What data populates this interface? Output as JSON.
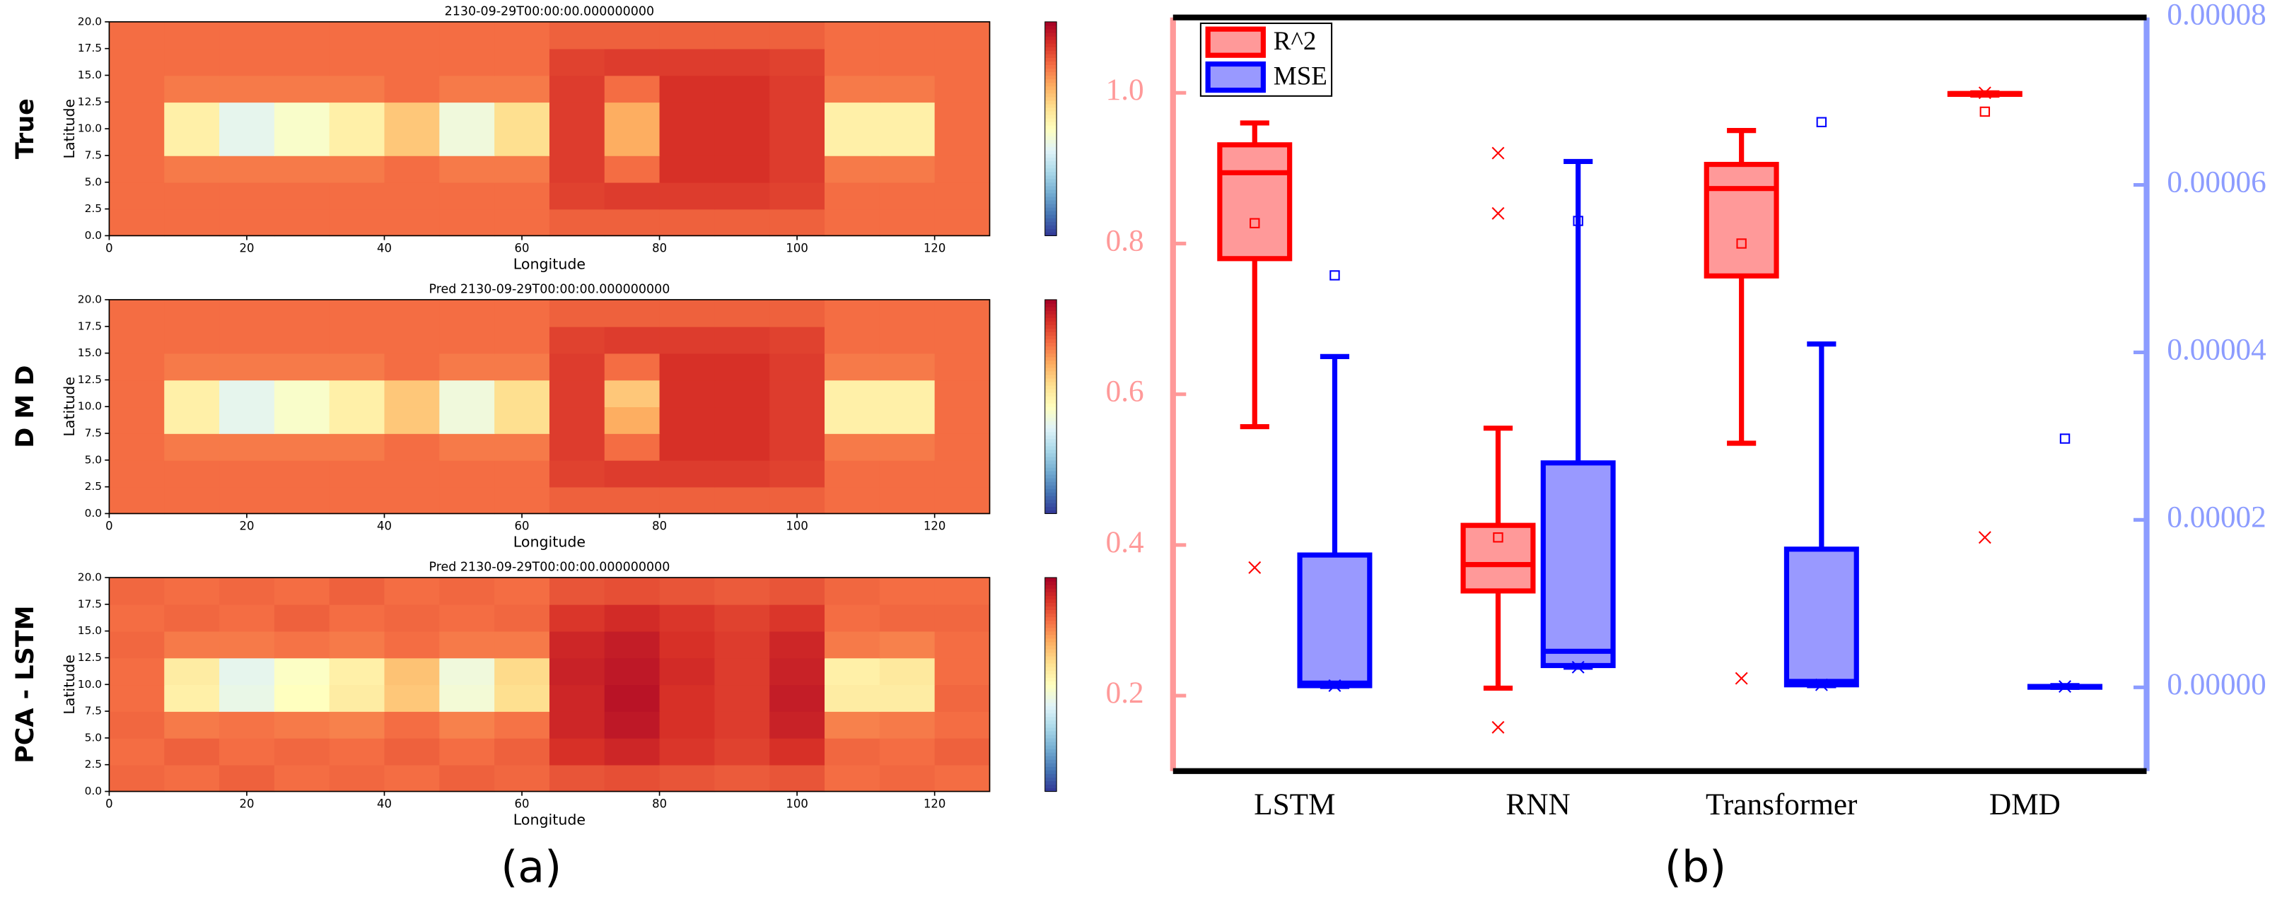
{
  "panel_labels": [
    "(a)",
    "(b)"
  ],
  "chart_data": [
    {
      "type": "heatmap",
      "title": "2130-09-29T00:00:00.000000000",
      "row_label": "True",
      "xlabel": "Longitude",
      "ylabel": "Latitude",
      "xlim": [
        0,
        128
      ],
      "ylim": [
        0,
        20
      ],
      "zlim": [
        0,
        1
      ],
      "xticks": [
        0,
        20,
        40,
        60,
        80,
        100,
        120
      ],
      "yticks": [
        {
          "value": 0,
          "label": "0.0"
        },
        2.5,
        {
          "value": 5,
          "label": "5.0"
        },
        7.5,
        {
          "value": 10,
          "label": "10.0"
        },
        12.5,
        {
          "value": 15,
          "label": "15.0"
        },
        17.5,
        {
          "value": 20,
          "label": "20.0"
        }
      ],
      "z": [
        [
          0.8,
          0.8,
          0.8,
          0.8,
          0.8,
          0.8,
          0.8,
          0.8,
          0.82,
          0.82,
          0.82,
          0.82,
          0.82,
          0.8,
          0.8,
          0.8
        ],
        [
          0.8,
          0.8,
          0.8,
          0.8,
          0.8,
          0.8,
          0.8,
          0.8,
          0.87,
          0.88,
          0.88,
          0.88,
          0.87,
          0.8,
          0.8,
          0.8
        ],
        [
          0.8,
          0.78,
          0.78,
          0.78,
          0.78,
          0.8,
          0.78,
          0.78,
          0.88,
          0.8,
          0.9,
          0.9,
          0.88,
          0.78,
          0.78,
          0.8
        ],
        [
          0.8,
          0.55,
          0.42,
          0.48,
          0.55,
          0.65,
          0.45,
          0.6,
          0.88,
          0.7,
          0.9,
          0.9,
          0.88,
          0.55,
          0.55,
          0.8
        ],
        [
          0.8,
          0.55,
          0.42,
          0.48,
          0.55,
          0.65,
          0.45,
          0.6,
          0.88,
          0.7,
          0.9,
          0.9,
          0.88,
          0.55,
          0.55,
          0.8
        ],
        [
          0.8,
          0.78,
          0.78,
          0.78,
          0.78,
          0.8,
          0.78,
          0.78,
          0.88,
          0.8,
          0.9,
          0.9,
          0.88,
          0.78,
          0.78,
          0.8
        ],
        [
          0.8,
          0.8,
          0.8,
          0.8,
          0.8,
          0.8,
          0.8,
          0.8,
          0.87,
          0.88,
          0.88,
          0.88,
          0.87,
          0.8,
          0.8,
          0.8
        ],
        [
          0.8,
          0.8,
          0.8,
          0.8,
          0.8,
          0.8,
          0.8,
          0.8,
          0.82,
          0.82,
          0.82,
          0.82,
          0.82,
          0.8,
          0.8,
          0.8
        ]
      ]
    },
    {
      "type": "heatmap",
      "title": "Pred 2130-09-29T00:00:00.000000000",
      "row_label": "D M D",
      "xlabel": "Longitude",
      "ylabel": "Latitude",
      "xlim": [
        0,
        128
      ],
      "ylim": [
        0,
        20
      ],
      "zlim": [
        0,
        1
      ],
      "xticks": [
        0,
        20,
        40,
        60,
        80,
        100,
        120
      ],
      "yticks": [
        {
          "value": 0,
          "label": "0.0"
        },
        2.5,
        {
          "value": 5,
          "label": "5.0"
        },
        7.5,
        {
          "value": 10,
          "label": "10.0"
        },
        12.5,
        {
          "value": 15,
          "label": "15.0"
        },
        17.5,
        {
          "value": 20,
          "label": "20.0"
        }
      ],
      "z": [
        [
          0.8,
          0.8,
          0.8,
          0.8,
          0.8,
          0.8,
          0.8,
          0.8,
          0.82,
          0.82,
          0.82,
          0.82,
          0.82,
          0.8,
          0.8,
          0.8
        ],
        [
          0.8,
          0.8,
          0.8,
          0.8,
          0.8,
          0.8,
          0.8,
          0.8,
          0.87,
          0.88,
          0.88,
          0.88,
          0.87,
          0.8,
          0.8,
          0.8
        ],
        [
          0.8,
          0.78,
          0.78,
          0.78,
          0.78,
          0.8,
          0.78,
          0.78,
          0.88,
          0.8,
          0.9,
          0.9,
          0.88,
          0.78,
          0.78,
          0.8
        ],
        [
          0.8,
          0.55,
          0.42,
          0.48,
          0.55,
          0.65,
          0.45,
          0.6,
          0.88,
          0.7,
          0.9,
          0.9,
          0.88,
          0.55,
          0.55,
          0.8
        ],
        [
          0.8,
          0.55,
          0.42,
          0.48,
          0.55,
          0.65,
          0.45,
          0.6,
          0.88,
          0.65,
          0.9,
          0.9,
          0.88,
          0.55,
          0.55,
          0.8
        ],
        [
          0.8,
          0.78,
          0.78,
          0.78,
          0.78,
          0.8,
          0.78,
          0.78,
          0.88,
          0.8,
          0.9,
          0.9,
          0.88,
          0.78,
          0.78,
          0.8
        ],
        [
          0.8,
          0.8,
          0.8,
          0.8,
          0.8,
          0.8,
          0.8,
          0.8,
          0.87,
          0.88,
          0.88,
          0.88,
          0.87,
          0.8,
          0.8,
          0.8
        ],
        [
          0.8,
          0.8,
          0.8,
          0.8,
          0.8,
          0.8,
          0.8,
          0.8,
          0.82,
          0.82,
          0.82,
          0.82,
          0.82,
          0.8,
          0.8,
          0.8
        ]
      ]
    },
    {
      "type": "heatmap",
      "title": "Pred 2130-09-29T00:00:00.000000000",
      "row_label": "PCA - LSTM",
      "xlabel": "Longitude",
      "ylabel": "Latitude",
      "xlim": [
        0,
        128
      ],
      "ylim": [
        0,
        20
      ],
      "zlim": [
        0,
        1
      ],
      "xticks": [
        0,
        20,
        40,
        60,
        80,
        100,
        120
      ],
      "yticks": [
        {
          "value": 0,
          "label": "0.0"
        },
        2.5,
        {
          "value": 5,
          "label": "5.0"
        },
        7.5,
        {
          "value": 10,
          "label": "10.0"
        },
        12.5,
        {
          "value": 15,
          "label": "15.0"
        },
        17.5,
        {
          "value": 20,
          "label": "20.0"
        }
      ],
      "z": [
        [
          0.81,
          0.8,
          0.82,
          0.8,
          0.81,
          0.8,
          0.82,
          0.81,
          0.84,
          0.85,
          0.84,
          0.83,
          0.84,
          0.8,
          0.81,
          0.8
        ],
        [
          0.8,
          0.82,
          0.8,
          0.81,
          0.8,
          0.82,
          0.8,
          0.82,
          0.9,
          0.92,
          0.89,
          0.87,
          0.9,
          0.81,
          0.8,
          0.82
        ],
        [
          0.81,
          0.78,
          0.79,
          0.78,
          0.77,
          0.8,
          0.77,
          0.79,
          0.92,
          0.95,
          0.9,
          0.88,
          0.93,
          0.77,
          0.78,
          0.8
        ],
        [
          0.8,
          0.55,
          0.43,
          0.5,
          0.56,
          0.65,
          0.46,
          0.6,
          0.92,
          0.96,
          0.9,
          0.88,
          0.94,
          0.56,
          0.56,
          0.81
        ],
        [
          0.8,
          0.56,
          0.42,
          0.49,
          0.55,
          0.66,
          0.45,
          0.61,
          0.93,
          0.95,
          0.91,
          0.88,
          0.93,
          0.55,
          0.57,
          0.8
        ],
        [
          0.81,
          0.78,
          0.78,
          0.79,
          0.78,
          0.8,
          0.78,
          0.78,
          0.92,
          0.94,
          0.9,
          0.88,
          0.92,
          0.78,
          0.77,
          0.8
        ],
        [
          0.8,
          0.81,
          0.8,
          0.82,
          0.8,
          0.81,
          0.8,
          0.81,
          0.89,
          0.91,
          0.89,
          0.87,
          0.89,
          0.8,
          0.81,
          0.81
        ],
        [
          0.81,
          0.8,
          0.81,
          0.8,
          0.82,
          0.8,
          0.81,
          0.8,
          0.84,
          0.85,
          0.84,
          0.83,
          0.84,
          0.81,
          0.8,
          0.8
        ]
      ]
    },
    {
      "type": "box",
      "categories": [
        "LSTM",
        "RNN",
        "Transformer",
        "DMD"
      ],
      "legend": "upper left",
      "ylim": [
        0.1,
        1.1
      ],
      "yticks": [
        0.2,
        0.4,
        0.6,
        0.8,
        {
          "value": 1,
          "label": "1.0"
        }
      ],
      "y2lim": [
        -1e-05,
        8e-05
      ],
      "y2ticks": [
        {
          "value": 0,
          "label": "0.00000"
        },
        {
          "value": 2e-05,
          "label": "0.00002"
        },
        {
          "value": 4e-05,
          "label": "0.00004"
        },
        {
          "value": 6e-05,
          "label": "0.00006"
        },
        {
          "value": 8e-05,
          "label": "0.00008"
        }
      ],
      "series": [
        {
          "name": "R^2",
          "color": "#ff0000",
          "fill": "#ff9999",
          "axis": "y",
          "stats": [
            {
              "whislo": 0.557,
              "q1": 0.78,
              "med": 0.894,
              "q3": 0.931,
              "whishi": 0.96,
              "mean": 0.827,
              "fliers": [
                0.37
              ]
            },
            {
              "whislo": 0.21,
              "q1": 0.339,
              "med": 0.374,
              "q3": 0.426,
              "whishi": 0.555,
              "mean": 0.41,
              "fliers": [
                0.92,
                0.84,
                0.158
              ]
            },
            {
              "whislo": 0.535,
              "q1": 0.757,
              "med": 0.873,
              "q3": 0.905,
              "whishi": 0.95,
              "mean": 0.8,
              "fliers": [
                0.223
              ]
            },
            {
              "whislo": 0.997,
              "q1": 0.998,
              "med": 0.999,
              "q3": 0.999,
              "whishi": 1,
              "mean": 0.975,
              "fliers": [
                1,
                0.41
              ]
            }
          ]
        },
        {
          "name": "MSE",
          "color": "#0000ff",
          "fill": "#9999ff",
          "axis": "y2",
          "stats": [
            {
              "whislo": 1e-07,
              "q1": 2e-07,
              "med": 5e-07,
              "q3": 1.58e-05,
              "whishi": 3.95e-05,
              "mean": 4.92e-05,
              "fliers": [
                2e-07
              ]
            },
            {
              "whislo": 2.4e-06,
              "q1": 2.6e-06,
              "med": 4.3e-06,
              "q3": 2.68e-05,
              "whishi": 6.28e-05,
              "mean": 5.57e-05,
              "fliers": [
                2.4e-06
              ]
            },
            {
              "whislo": 2e-07,
              "q1": 3e-07,
              "med": 7e-07,
              "q3": 1.65e-05,
              "whishi": 4.1e-05,
              "mean": 6.75e-05,
              "fliers": [
                3e-07
              ]
            },
            {
              "whislo": 0,
              "q1": 1e-07,
              "med": 1e-07,
              "q3": 1e-07,
              "whishi": 2e-07,
              "mean": 2.97e-05,
              "fliers": [
                1e-07
              ]
            }
          ]
        }
      ]
    }
  ]
}
